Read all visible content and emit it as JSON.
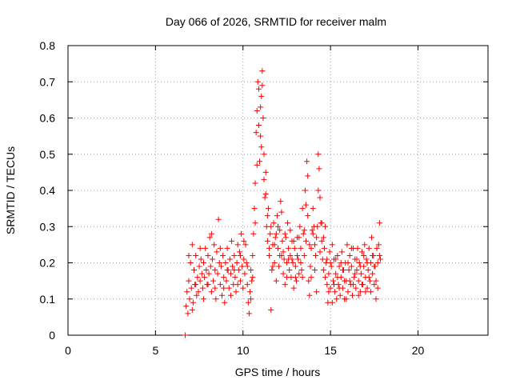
{
  "chart_data": {
    "type": "scatter",
    "title": "Day 066 of 2026, SRMTID for receiver malm",
    "xlabel": "GPS time / hours",
    "ylabel": "SRMTID / TECUs",
    "xlim": [
      0,
      24
    ],
    "ylim": [
      0,
      0.8
    ],
    "x_ticks": [
      0,
      5,
      10,
      15,
      20
    ],
    "x_tick_labels": [
      "0",
      "5",
      "10",
      "15",
      "20"
    ],
    "y_ticks": [
      0,
      0.1,
      0.2,
      0.3,
      0.4,
      0.5,
      0.6,
      0.7,
      0.8
    ],
    "y_tick_labels": [
      "0",
      "0.1",
      "0.2",
      "0.3",
      "0.4",
      "0.5",
      "0.6",
      "0.7",
      "0.8"
    ],
    "grid": true,
    "marker": "plus",
    "color": "#ff0000",
    "series": [
      {
        "name": "SRMTID",
        "points": [
          [
            6.7,
            0.0
          ],
          [
            6.75,
            0.08
          ],
          [
            6.8,
            0.12
          ],
          [
            6.85,
            0.06
          ],
          [
            6.9,
            0.15
          ],
          [
            6.95,
            0.1
          ],
          [
            7.0,
            0.2
          ],
          [
            7.05,
            0.13
          ],
          [
            7.1,
            0.25
          ],
          [
            7.15,
            0.09
          ],
          [
            7.2,
            0.18
          ],
          [
            7.25,
            0.14
          ],
          [
            7.3,
            0.22
          ],
          [
            7.35,
            0.11
          ],
          [
            7.4,
            0.16
          ],
          [
            7.45,
            0.12
          ],
          [
            7.5,
            0.19
          ],
          [
            7.55,
            0.15
          ],
          [
            7.6,
            0.21
          ],
          [
            7.65,
            0.17
          ],
          [
            7.7,
            0.13
          ],
          [
            7.75,
            0.2
          ],
          [
            7.8,
            0.16
          ],
          [
            7.85,
            0.24
          ],
          [
            7.9,
            0.18
          ],
          [
            7.95,
            0.14
          ],
          [
            8.0,
            0.22
          ],
          [
            8.05,
            0.17
          ],
          [
            8.1,
            0.27
          ],
          [
            8.15,
            0.19
          ],
          [
            8.2,
            0.12
          ],
          [
            8.25,
            0.21
          ],
          [
            8.3,
            0.15
          ],
          [
            8.35,
            0.25
          ],
          [
            8.4,
            0.18
          ],
          [
            8.45,
            0.1
          ],
          [
            8.5,
            0.23
          ],
          [
            8.55,
            0.17
          ],
          [
            8.6,
            0.32
          ],
          [
            8.65,
            0.2
          ],
          [
            8.7,
            0.14
          ],
          [
            8.75,
            0.19
          ],
          [
            8.8,
            0.11
          ],
          [
            8.85,
            0.22
          ],
          [
            8.9,
            0.16
          ],
          [
            8.95,
            0.09
          ],
          [
            9.0,
            0.2
          ],
          [
            9.05,
            0.15
          ],
          [
            9.1,
            0.24
          ],
          [
            9.15,
            0.18
          ],
          [
            9.2,
            0.13
          ],
          [
            9.25,
            0.21
          ],
          [
            9.3,
            0.17
          ],
          [
            9.35,
            0.26
          ],
          [
            9.4,
            0.19
          ],
          [
            9.45,
            0.14
          ],
          [
            9.5,
            0.22
          ],
          [
            9.55,
            0.16
          ],
          [
            9.6,
            0.12
          ],
          [
            9.65,
            0.2
          ],
          [
            9.7,
            0.25
          ],
          [
            9.75,
            0.18
          ],
          [
            9.8,
            0.23
          ],
          [
            9.85,
            0.15
          ],
          [
            9.9,
            0.28
          ],
          [
            9.95,
            0.19
          ],
          [
            10.0,
            0.13
          ],
          [
            10.05,
            0.21
          ],
          [
            10.1,
            0.17
          ],
          [
            10.15,
            0.25
          ],
          [
            10.2,
            0.2
          ],
          [
            10.25,
            0.14
          ],
          [
            10.3,
            0.09
          ],
          [
            10.35,
            0.06
          ],
          [
            10.4,
            0.12
          ],
          [
            10.45,
            0.18
          ],
          [
            10.5,
            0.15
          ],
          [
            10.55,
            0.22
          ],
          [
            10.6,
            0.28
          ],
          [
            10.65,
            0.35
          ],
          [
            10.7,
            0.42
          ],
          [
            10.75,
            0.56
          ],
          [
            10.8,
            0.62
          ],
          [
            10.85,
            0.7
          ],
          [
            10.9,
            0.68
          ],
          [
            10.95,
            0.48
          ],
          [
            11.0,
            0.55
          ],
          [
            11.05,
            0.66
          ],
          [
            11.1,
            0.73
          ],
          [
            11.15,
            0.6
          ],
          [
            11.2,
            0.5
          ],
          [
            11.25,
            0.38
          ],
          [
            11.3,
            0.45
          ],
          [
            11.35,
            0.3
          ],
          [
            11.4,
            0.26
          ],
          [
            11.45,
            0.35
          ],
          [
            11.5,
            0.22
          ],
          [
            11.55,
            0.28
          ],
          [
            11.6,
            0.07
          ],
          [
            11.65,
            0.18
          ],
          [
            11.7,
            0.25
          ],
          [
            11.75,
            0.31
          ],
          [
            11.8,
            0.2
          ],
          [
            11.85,
            0.27
          ],
          [
            11.9,
            0.15
          ],
          [
            11.95,
            0.33
          ],
          [
            12.0,
            0.24
          ],
          [
            12.05,
            0.19
          ],
          [
            12.1,
            0.29
          ],
          [
            12.15,
            0.37
          ],
          [
            12.2,
            0.22
          ],
          [
            12.25,
            0.26
          ],
          [
            12.3,
            0.17
          ],
          [
            12.35,
            0.21
          ],
          [
            12.4,
            0.14
          ],
          [
            12.45,
            0.27
          ],
          [
            12.5,
            0.2
          ],
          [
            12.55,
            0.31
          ],
          [
            12.6,
            0.24
          ],
          [
            12.65,
            0.18
          ],
          [
            12.7,
            0.22
          ],
          [
            12.75,
            0.16
          ],
          [
            12.8,
            0.26
          ],
          [
            12.85,
            0.2
          ],
          [
            12.9,
            0.13
          ],
          [
            12.95,
            0.24
          ],
          [
            13.0,
            0.19
          ],
          [
            13.05,
            0.15
          ],
          [
            13.1,
            0.27
          ],
          [
            13.15,
            0.21
          ],
          [
            13.2,
            0.17
          ],
          [
            13.25,
            0.3
          ],
          [
            13.3,
            0.24
          ],
          [
            13.35,
            0.18
          ],
          [
            13.4,
            0.35
          ],
          [
            13.45,
            0.28
          ],
          [
            13.5,
            0.22
          ],
          [
            13.55,
            0.4
          ],
          [
            13.6,
            0.26
          ],
          [
            13.65,
            0.48
          ],
          [
            13.7,
            0.33
          ],
          [
            13.75,
            0.15
          ],
          [
            13.8,
            0.11
          ],
          [
            13.85,
            0.19
          ],
          [
            13.9,
            0.24
          ],
          [
            13.95,
            0.29
          ],
          [
            14.0,
            0.35
          ],
          [
            14.05,
            0.3
          ],
          [
            14.1,
            0.25
          ],
          [
            14.15,
            0.22
          ],
          [
            14.2,
            0.12
          ],
          [
            14.25,
            0.3
          ],
          [
            14.3,
            0.5
          ],
          [
            14.35,
            0.46
          ],
          [
            14.4,
            0.38
          ],
          [
            14.45,
            0.31
          ],
          [
            14.5,
            0.26
          ],
          [
            14.55,
            0.21
          ],
          [
            14.6,
            0.18
          ],
          [
            14.65,
            0.24
          ],
          [
            14.7,
            0.3
          ],
          [
            14.75,
            0.2
          ],
          [
            14.8,
            0.14
          ],
          [
            14.85,
            0.09
          ],
          [
            14.9,
            0.17
          ],
          [
            14.95,
            0.23
          ],
          [
            15.0,
            0.13
          ],
          [
            15.05,
            0.19
          ],
          [
            15.1,
            0.09
          ],
          [
            15.15,
            0.15
          ],
          [
            15.2,
            0.21
          ],
          [
            15.25,
            0.12
          ],
          [
            15.3,
            0.17
          ],
          [
            15.35,
            0.1
          ],
          [
            15.4,
            0.22
          ],
          [
            15.45,
            0.14
          ],
          [
            15.5,
            0.19
          ],
          [
            15.55,
            0.11
          ],
          [
            15.6,
            0.16
          ],
          [
            15.65,
            0.23
          ],
          [
            15.7,
            0.13
          ],
          [
            15.75,
            0.18
          ],
          [
            15.8,
            0.1
          ],
          [
            15.85,
            0.2
          ],
          [
            15.9,
            0.15
          ],
          [
            15.95,
            0.25
          ],
          [
            16.0,
            0.12
          ],
          [
            16.05,
            0.18
          ],
          [
            16.1,
            0.22
          ],
          [
            16.15,
            0.14
          ],
          [
            16.2,
            0.19
          ],
          [
            16.25,
            0.11
          ],
          [
            16.3,
            0.24
          ],
          [
            16.35,
            0.16
          ],
          [
            16.4,
            0.21
          ],
          [
            16.45,
            0.13
          ],
          [
            16.5,
            0.18
          ],
          [
            16.55,
            0.24
          ],
          [
            16.6,
            0.15
          ],
          [
            16.65,
            0.2
          ],
          [
            16.7,
            0.12
          ],
          [
            16.75,
            0.17
          ],
          [
            16.8,
            0.23
          ],
          [
            16.85,
            0.14
          ],
          [
            16.9,
            0.19
          ],
          [
            16.95,
            0.25
          ],
          [
            17.0,
            0.16
          ],
          [
            17.05,
            0.21
          ],
          [
            17.1,
            0.13
          ],
          [
            17.15,
            0.18
          ],
          [
            17.2,
            0.24
          ],
          [
            17.25,
            0.15
          ],
          [
            17.3,
            0.2
          ],
          [
            17.35,
            0.27
          ],
          [
            17.4,
            0.17
          ],
          [
            17.45,
            0.22
          ],
          [
            17.5,
            0.14
          ],
          [
            17.55,
            0.19
          ],
          [
            17.6,
            0.1
          ],
          [
            17.65,
            0.24
          ],
          [
            17.7,
            0.2
          ],
          [
            17.75,
            0.25
          ],
          [
            17.8,
            0.31
          ],
          [
            17.85,
            0.21
          ],
          [
            6.9,
            0.22
          ],
          [
            7.1,
            0.07
          ],
          [
            7.3,
            0.14
          ],
          [
            7.55,
            0.24
          ],
          [
            7.75,
            0.1
          ],
          [
            8.0,
            0.14
          ],
          [
            8.2,
            0.28
          ],
          [
            8.4,
            0.13
          ],
          [
            8.7,
            0.24
          ],
          [
            8.9,
            0.13
          ],
          [
            9.1,
            0.18
          ],
          [
            9.3,
            0.11
          ],
          [
            9.5,
            0.18
          ],
          [
            9.7,
            0.14
          ],
          [
            9.85,
            0.22
          ],
          [
            10.05,
            0.26
          ],
          [
            10.25,
            0.19
          ],
          [
            10.45,
            0.1
          ],
          [
            10.55,
            0.16
          ],
          [
            10.7,
            0.31
          ],
          [
            10.8,
            0.47
          ],
          [
            10.9,
            0.58
          ],
          [
            11.0,
            0.63
          ],
          [
            11.05,
            0.52
          ],
          [
            11.1,
            0.69
          ],
          [
            11.2,
            0.43
          ],
          [
            11.3,
            0.39
          ],
          [
            11.4,
            0.33
          ],
          [
            11.5,
            0.24
          ],
          [
            11.6,
            0.3
          ],
          [
            11.7,
            0.19
          ],
          [
            11.8,
            0.25
          ],
          [
            11.9,
            0.28
          ],
          [
            12.0,
            0.3
          ],
          [
            12.1,
            0.22
          ],
          [
            12.2,
            0.34
          ],
          [
            12.3,
            0.23
          ],
          [
            12.4,
            0.28
          ],
          [
            12.5,
            0.16
          ],
          [
            12.6,
            0.21
          ],
          [
            12.7,
            0.29
          ],
          [
            12.8,
            0.21
          ],
          [
            12.9,
            0.26
          ],
          [
            13.0,
            0.16
          ],
          [
            13.1,
            0.22
          ],
          [
            13.2,
            0.27
          ],
          [
            13.3,
            0.2
          ],
          [
            13.4,
            0.16
          ],
          [
            13.5,
            0.29
          ],
          [
            13.6,
            0.36
          ],
          [
            13.7,
            0.44
          ],
          [
            13.8,
            0.25
          ],
          [
            13.9,
            0.16
          ],
          [
            14.0,
            0.28
          ],
          [
            14.1,
            0.18
          ],
          [
            14.2,
            0.27
          ],
          [
            14.3,
            0.4
          ],
          [
            14.4,
            0.23
          ],
          [
            14.5,
            0.31
          ],
          [
            14.6,
            0.27
          ],
          [
            14.7,
            0.16
          ],
          [
            14.8,
            0.21
          ],
          [
            14.9,
            0.12
          ],
          [
            15.0,
            0.2
          ],
          [
            15.1,
            0.25
          ],
          [
            15.2,
            0.14
          ],
          [
            15.3,
            0.21
          ],
          [
            15.4,
            0.16
          ],
          [
            15.5,
            0.13
          ],
          [
            15.6,
            0.2
          ],
          [
            15.7,
            0.18
          ],
          [
            15.8,
            0.15
          ],
          [
            15.9,
            0.1
          ],
          [
            16.0,
            0.2
          ],
          [
            16.1,
            0.15
          ],
          [
            16.2,
            0.24
          ],
          [
            16.3,
            0.14
          ],
          [
            16.4,
            0.17
          ],
          [
            16.5,
            0.21
          ],
          [
            16.6,
            0.11
          ],
          [
            16.7,
            0.19
          ],
          [
            16.8,
            0.14
          ],
          [
            16.9,
            0.22
          ],
          [
            17.0,
            0.12
          ],
          [
            17.1,
            0.2
          ],
          [
            17.2,
            0.16
          ],
          [
            17.3,
            0.12
          ],
          [
            17.4,
            0.22
          ],
          [
            17.5,
            0.19
          ],
          [
            17.6,
            0.15
          ],
          [
            17.7,
            0.13
          ],
          [
            17.8,
            0.22
          ]
        ]
      }
    ]
  }
}
